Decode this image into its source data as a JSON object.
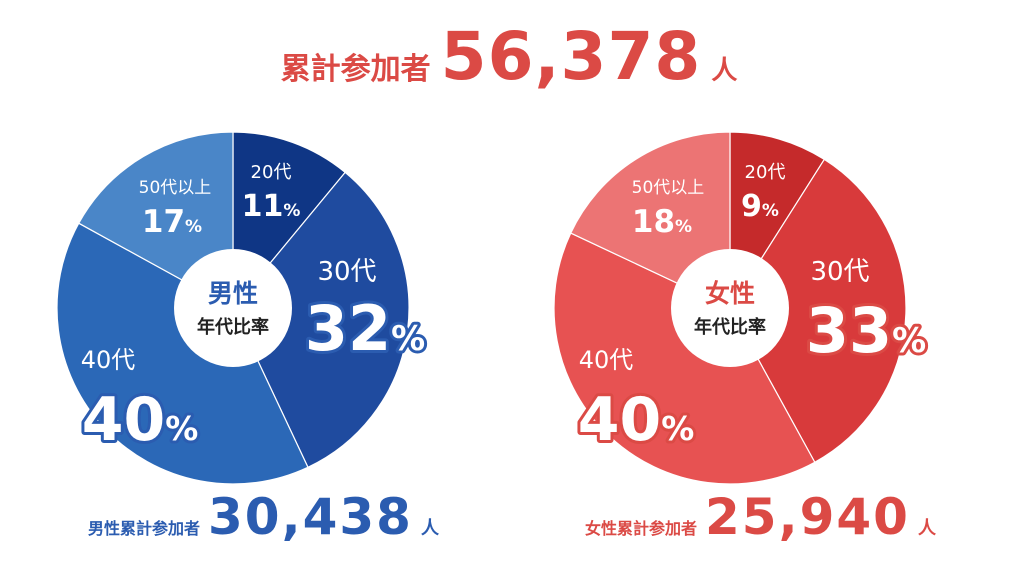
{
  "total": {
    "label": "累計参加者",
    "value": "56,378",
    "unit": "人"
  },
  "center_subtitle": "年代比率",
  "percent_sign": "%",
  "chart_data": [
    {
      "type": "pie",
      "title": "男性",
      "subtitle": "年代比率",
      "categories": [
        "20代",
        "30代",
        "40代",
        "50代以上"
      ],
      "values": [
        11,
        32,
        40,
        17
      ],
      "colors": [
        "#0f3685",
        "#1f4b9f",
        "#2b68b7",
        "#4a86c8"
      ],
      "accent": "#2b5cb0",
      "footer": {
        "label": "男性累計参加者",
        "value": "30,438",
        "unit": "人"
      }
    },
    {
      "type": "pie",
      "title": "女性",
      "subtitle": "年代比率",
      "categories": [
        "20代",
        "30代",
        "40代",
        "50代以上"
      ],
      "values": [
        9,
        33,
        40,
        18
      ],
      "colors": [
        "#c52a2b",
        "#d83a3b",
        "#e75252",
        "#ec7474"
      ],
      "accent": "#db4a45",
      "footer": {
        "label": "女性累計参加者",
        "value": "25,940",
        "unit": "人"
      }
    }
  ]
}
